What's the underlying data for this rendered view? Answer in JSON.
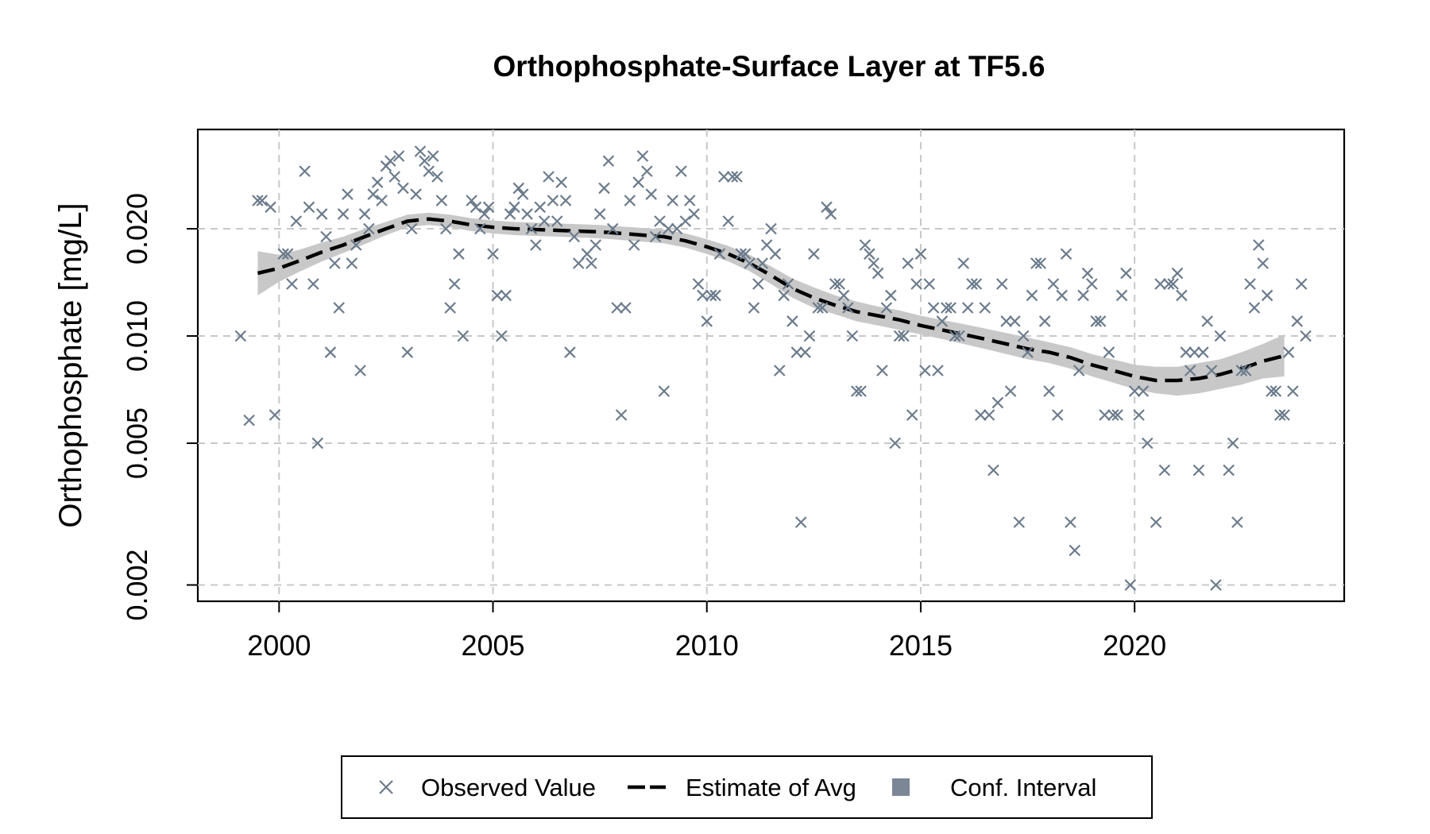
{
  "chart_data": {
    "type": "scatter",
    "title": "Orthophosphate-Surface Layer at TF5.6",
    "xlabel": "",
    "ylabel": "Orthophosphate [mg/L]",
    "xlim": [
      1998.1,
      2024.9
    ],
    "ylim": [
      0.0018,
      0.038
    ],
    "y_scale": "log",
    "x_ticks": [
      2000,
      2005,
      2010,
      2015,
      2020
    ],
    "x_tick_labels": [
      "2000",
      "2005",
      "2010",
      "2015",
      "2020"
    ],
    "y_ticks": [
      0.002,
      0.005,
      0.01,
      0.02
    ],
    "y_tick_labels": [
      "0.002",
      "0.005",
      "0.010",
      "0.020"
    ],
    "grid": true,
    "colors": {
      "points": "#6b7b8c",
      "line": "#000000",
      "band": "#c8c8c8",
      "grid": "#c8c8c8"
    },
    "legend": {
      "position": "bottom",
      "entries": [
        {
          "label": "Observed Value",
          "symbol": "x",
          "color": "#6b7b8c"
        },
        {
          "label": "Estimate of Avg",
          "symbol": "dashed-line",
          "color": "#000000"
        },
        {
          "label": "Conf. Interval",
          "symbol": "square",
          "color": "#7b8794"
        }
      ]
    },
    "series": [
      {
        "name": "Observed Value",
        "kind": "points",
        "x": [
          1999.1,
          1999.3,
          1999.5,
          1999.6,
          1999.8,
          1999.9,
          2000.1,
          2000.2,
          2000.3,
          2000.4,
          2000.6,
          2000.7,
          2000.8,
          2000.9,
          2001.0,
          2001.1,
          2001.2,
          2001.3,
          2001.4,
          2001.5,
          2001.6,
          2001.7,
          2001.8,
          2001.9,
          2002.0,
          2002.1,
          2002.2,
          2002.3,
          2002.4,
          2002.5,
          2002.6,
          2002.7,
          2002.8,
          2002.9,
          2003.0,
          2003.1,
          2003.2,
          2003.3,
          2003.4,
          2003.5,
          2003.6,
          2003.7,
          2003.8,
          2003.9,
          2004.0,
          2004.1,
          2004.2,
          2004.3,
          2004.5,
          2004.6,
          2004.7,
          2004.8,
          2004.9,
          2005.0,
          2005.1,
          2005.2,
          2005.3,
          2005.4,
          2005.5,
          2005.6,
          2005.7,
          2005.8,
          2005.9,
          2006.0,
          2006.1,
          2006.2,
          2006.3,
          2006.4,
          2006.5,
          2006.6,
          2006.7,
          2006.8,
          2006.9,
          2007.0,
          2007.2,
          2007.3,
          2007.4,
          2007.5,
          2007.6,
          2007.7,
          2007.8,
          2007.9,
          2008.0,
          2008.1,
          2008.2,
          2008.3,
          2008.4,
          2008.5,
          2008.6,
          2008.7,
          2008.8,
          2008.9,
          2009.0,
          2009.1,
          2009.2,
          2009.3,
          2009.4,
          2009.5,
          2009.6,
          2009.7,
          2009.8,
          2009.9,
          2010.0,
          2010.1,
          2010.2,
          2010.3,
          2010.4,
          2010.5,
          2010.6,
          2010.7,
          2010.8,
          2010.9,
          2011.0,
          2011.1,
          2011.2,
          2011.3,
          2011.4,
          2011.5,
          2011.6,
          2011.7,
          2011.8,
          2011.9,
          2012.0,
          2012.1,
          2012.2,
          2012.3,
          2012.4,
          2012.5,
          2012.6,
          2012.7,
          2012.8,
          2012.9,
          2013.0,
          2013.1,
          2013.2,
          2013.3,
          2013.4,
          2013.5,
          2013.6,
          2013.7,
          2013.8,
          2013.9,
          2014.0,
          2014.1,
          2014.2,
          2014.3,
          2014.4,
          2014.5,
          2014.6,
          2014.7,
          2014.8,
          2014.9,
          2015.0,
          2015.1,
          2015.2,
          2015.3,
          2015.4,
          2015.5,
          2015.6,
          2015.7,
          2015.8,
          2015.9,
          2016.0,
          2016.1,
          2016.2,
          2016.3,
          2016.4,
          2016.5,
          2016.6,
          2016.7,
          2016.8,
          2016.9,
          2017.0,
          2017.1,
          2017.2,
          2017.3,
          2017.4,
          2017.5,
          2017.6,
          2017.7,
          2017.8,
          2017.9,
          2018.0,
          2018.1,
          2018.2,
          2018.3,
          2018.4,
          2018.5,
          2018.6,
          2018.7,
          2018.8,
          2018.9,
          2019.0,
          2019.1,
          2019.2,
          2019.3,
          2019.4,
          2019.5,
          2019.6,
          2019.7,
          2019.8,
          2019.9,
          2020.0,
          2020.1,
          2020.2,
          2020.3,
          2020.5,
          2020.6,
          2020.7,
          2020.8,
          2020.9,
          2021.0,
          2021.1,
          2021.2,
          2021.3,
          2021.4,
          2021.5,
          2021.6,
          2021.7,
          2021.8,
          2021.9,
          2022.0,
          2022.2,
          2022.3,
          2022.4,
          2022.5,
          2022.6,
          2022.7,
          2022.8,
          2022.9,
          2023.0,
          2023.1,
          2023.2,
          2023.3,
          2023.4,
          2023.5,
          2023.6,
          2023.7,
          2023.8,
          2023.9,
          2024.0
        ],
        "y": [
          0.01,
          0.0058,
          0.024,
          0.024,
          0.023,
          0.006,
          0.017,
          0.017,
          0.014,
          0.021,
          0.029,
          0.023,
          0.014,
          0.005,
          0.022,
          0.019,
          0.009,
          0.016,
          0.012,
          0.022,
          0.025,
          0.016,
          0.018,
          0.008,
          0.022,
          0.02,
          0.025,
          0.027,
          0.024,
          0.03,
          0.031,
          0.028,
          0.032,
          0.026,
          0.009,
          0.02,
          0.025,
          0.033,
          0.031,
          0.029,
          0.032,
          0.028,
          0.024,
          0.02,
          0.012,
          0.014,
          0.017,
          0.01,
          0.024,
          0.023,
          0.02,
          0.022,
          0.023,
          0.017,
          0.013,
          0.01,
          0.013,
          0.022,
          0.023,
          0.026,
          0.025,
          0.022,
          0.02,
          0.018,
          0.023,
          0.021,
          0.028,
          0.024,
          0.021,
          0.027,
          0.024,
          0.009,
          0.019,
          0.016,
          0.017,
          0.016,
          0.018,
          0.022,
          0.026,
          0.031,
          0.02,
          0.012,
          0.006,
          0.012,
          0.024,
          0.018,
          0.027,
          0.032,
          0.029,
          0.025,
          0.019,
          0.021,
          0.007,
          0.02,
          0.024,
          0.02,
          0.029,
          0.021,
          0.024,
          0.022,
          0.014,
          0.013,
          0.011,
          0.013,
          0.013,
          0.017,
          0.028,
          0.021,
          0.028,
          0.028,
          0.017,
          0.017,
          0.016,
          0.012,
          0.014,
          0.016,
          0.018,
          0.02,
          0.017,
          0.008,
          0.013,
          0.014,
          0.011,
          0.009,
          0.003,
          0.009,
          0.01,
          0.017,
          0.012,
          0.012,
          0.023,
          0.022,
          0.014,
          0.014,
          0.013,
          0.012,
          0.01,
          0.007,
          0.007,
          0.018,
          0.017,
          0.016,
          0.015,
          0.008,
          0.012,
          0.013,
          0.005,
          0.01,
          0.01,
          0.016,
          0.006,
          0.014,
          0.017,
          0.008,
          0.014,
          0.012,
          0.008,
          0.011,
          0.012,
          0.012,
          0.01,
          0.01,
          0.016,
          0.012,
          0.014,
          0.014,
          0.006,
          0.012,
          0.006,
          0.0042,
          0.0065,
          0.014,
          0.011,
          0.007,
          0.011,
          0.003,
          0.01,
          0.009,
          0.013,
          0.016,
          0.016,
          0.011,
          0.007,
          0.014,
          0.006,
          0.013,
          0.017,
          0.003,
          0.0025,
          0.008,
          0.013,
          0.015,
          0.014,
          0.011,
          0.011,
          0.006,
          0.009,
          0.006,
          0.006,
          0.013,
          0.015,
          0.002,
          0.007,
          0.006,
          0.007,
          0.005,
          0.003,
          0.014,
          0.0042,
          0.014,
          0.014,
          0.015,
          0.013,
          0.009,
          0.008,
          0.009,
          0.0042,
          0.009,
          0.011,
          0.008,
          0.002,
          0.01,
          0.0042,
          0.005,
          0.003,
          0.008,
          0.008,
          0.014,
          0.012,
          0.018,
          0.016,
          0.013,
          0.007,
          0.007,
          0.006,
          0.006,
          0.009,
          0.007,
          0.011,
          0.014,
          0.01
        ]
      },
      {
        "name": "Estimate of Avg",
        "kind": "line",
        "x": [
          1999.5,
          2000.0,
          2000.5,
          2001.0,
          2001.5,
          2002.0,
          2002.5,
          2003.0,
          2003.5,
          2004.0,
          2004.5,
          2005.0,
          2005.5,
          2006.0,
          2006.5,
          2007.0,
          2007.5,
          2008.0,
          2008.5,
          2009.0,
          2009.5,
          2010.0,
          2010.5,
          2011.0,
          2011.5,
          2012.0,
          2012.5,
          2013.0,
          2013.5,
          2014.0,
          2014.5,
          2015.0,
          2015.5,
          2016.0,
          2016.5,
          2017.0,
          2017.5,
          2018.0,
          2018.5,
          2019.0,
          2019.5,
          2020.0,
          2020.5,
          2021.0,
          2021.5,
          2022.0,
          2022.5,
          2023.0,
          2023.5
        ],
        "y": [
          0.015,
          0.0155,
          0.0163,
          0.0172,
          0.018,
          0.019,
          0.02,
          0.021,
          0.0213,
          0.021,
          0.0205,
          0.0202,
          0.02,
          0.0199,
          0.0198,
          0.0197,
          0.0196,
          0.0194,
          0.0192,
          0.019,
          0.0185,
          0.0178,
          0.017,
          0.016,
          0.0148,
          0.0136,
          0.0128,
          0.0122,
          0.0117,
          0.0114,
          0.0111,
          0.0107,
          0.0104,
          0.0101,
          0.0098,
          0.0095,
          0.0092,
          0.009,
          0.0087,
          0.0083,
          0.008,
          0.0077,
          0.0075,
          0.0075,
          0.0076,
          0.0078,
          0.0081,
          0.0085,
          0.0088
        ]
      },
      {
        "name": "Conf. Interval",
        "kind": "band",
        "x": [
          1999.5,
          2000.0,
          2000.5,
          2001.0,
          2001.5,
          2002.0,
          2002.5,
          2003.0,
          2003.5,
          2004.0,
          2004.5,
          2005.0,
          2005.5,
          2006.0,
          2006.5,
          2007.0,
          2007.5,
          2008.0,
          2008.5,
          2009.0,
          2009.5,
          2010.0,
          2010.5,
          2011.0,
          2011.5,
          2012.0,
          2012.5,
          2013.0,
          2013.5,
          2014.0,
          2014.5,
          2015.0,
          2015.5,
          2016.0,
          2016.5,
          2017.0,
          2017.5,
          2018.0,
          2018.5,
          2019.0,
          2019.5,
          2020.0,
          2020.5,
          2021.0,
          2021.5,
          2022.0,
          2022.5,
          2023.0,
          2023.5
        ],
        "lower": [
          0.013,
          0.0142,
          0.0152,
          0.0162,
          0.0171,
          0.0181,
          0.0192,
          0.0202,
          0.0205,
          0.0202,
          0.0197,
          0.0194,
          0.0192,
          0.0191,
          0.019,
          0.0189,
          0.0188,
          0.0186,
          0.0184,
          0.0182,
          0.0177,
          0.017,
          0.0162,
          0.0152,
          0.014,
          0.0128,
          0.012,
          0.0115,
          0.011,
          0.0107,
          0.0104,
          0.0101,
          0.0098,
          0.0095,
          0.0092,
          0.0089,
          0.0086,
          0.0084,
          0.0081,
          0.0077,
          0.0074,
          0.0071,
          0.0069,
          0.0068,
          0.0069,
          0.0071,
          0.0073,
          0.0076,
          0.0077
        ],
        "upper": [
          0.0173,
          0.0169,
          0.0175,
          0.0183,
          0.019,
          0.02,
          0.0209,
          0.0219,
          0.0222,
          0.0219,
          0.0214,
          0.0211,
          0.0209,
          0.0208,
          0.0207,
          0.0206,
          0.0205,
          0.0203,
          0.0201,
          0.0199,
          0.0194,
          0.0187,
          0.0179,
          0.0169,
          0.0157,
          0.0145,
          0.0137,
          0.013,
          0.0125,
          0.0121,
          0.0118,
          0.0114,
          0.0111,
          0.0108,
          0.0105,
          0.0102,
          0.0099,
          0.0096,
          0.0093,
          0.0089,
          0.0086,
          0.0083,
          0.0082,
          0.0082,
          0.0084,
          0.0086,
          0.009,
          0.0095,
          0.0101
        ]
      }
    ]
  }
}
